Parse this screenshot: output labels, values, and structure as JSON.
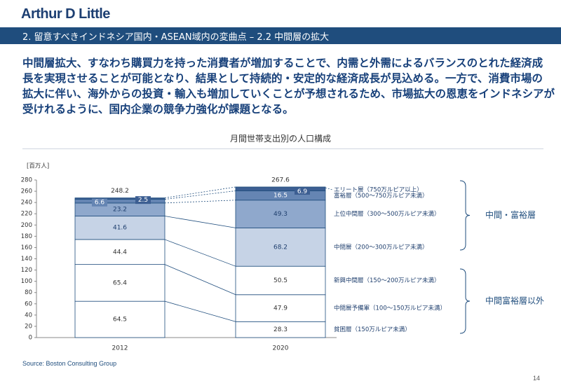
{
  "header": {
    "logo": "Arthur D Little",
    "section_title": "2. 留意すべきインドネシア国内・ASEAN域内の変曲点 – 2.2 中間層の拡大"
  },
  "lead": [
    "中間層拡大、すなわち購買力を持った消費者が増加することで、内需と外需によるバランスのとれた経済成",
    "長を実現させることが可能となり、結果として持続的・安定的な経済成長が見込める。一方で、消費市場の",
    "拡大に伴い、海外からの投資・輸入も増加していくことが予想されるため、市場拡大の恩恵をインドネシアが",
    "受けれるように、国内企業の競争力強化が課題となる。"
  ],
  "chart_data": {
    "type": "bar",
    "stacked": true,
    "title": "月間世帯支出別の人口構成",
    "ylabel": "[百万人]",
    "ylim": [
      0,
      280
    ],
    "yticks": [
      0,
      20,
      40,
      60,
      80,
      100,
      120,
      140,
      160,
      180,
      200,
      220,
      240,
      260,
      280
    ],
    "categories": [
      "2012",
      "2020"
    ],
    "totals": [
      248.2,
      267.6
    ],
    "series": [
      {
        "name": "貧困層（150万ルピア未満）",
        "values": [
          64.5,
          28.3
        ],
        "color": "#ffffff"
      },
      {
        "name": "中間層予備軍（100～150万ルピア未満）",
        "values": [
          65.4,
          47.9
        ],
        "color": "#ffffff"
      },
      {
        "name": "新興中間層（150～200万ルピア未満）",
        "values": [
          44.4,
          50.5
        ],
        "color": "#ffffff"
      },
      {
        "name": "中間層（200～300万ルピア未満）",
        "values": [
          41.6,
          68.2
        ],
        "color": "#c6d3e6"
      },
      {
        "name": "上位中間層（300～500万ルピア未満）",
        "values": [
          23.2,
          49.3
        ],
        "color": "#8fa8cc"
      },
      {
        "name": "富裕層（500～750万ルピア未満）",
        "values": [
          6.6,
          16.5
        ],
        "color": "#6585b3"
      },
      {
        "name": "エリート層（750万ルピア以上）",
        "values": [
          2.5,
          6.9
        ],
        "color": "#3c5e92"
      }
    ],
    "groups": [
      {
        "label": "中間・富裕層",
        "series_from": 3,
        "series_to": 6
      },
      {
        "label": "中間富裕層以外",
        "series_from": 0,
        "series_to": 2
      }
    ]
  },
  "footer": {
    "source": "Source: Boston Consulting Group",
    "page": "14"
  }
}
